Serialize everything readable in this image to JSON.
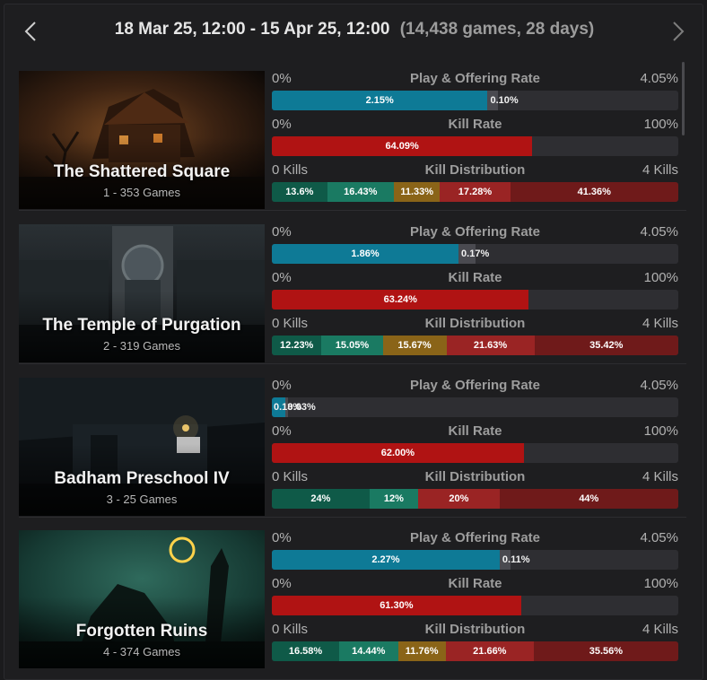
{
  "header": {
    "range": "18 Mar 25, 12:00 - 15 Apr 25, 12:00",
    "meta": "(14,438 games, 28 days)"
  },
  "colors": {
    "play": "#0e7a96",
    "offering": "#4a4a50",
    "kill": "#b01313",
    "k0": "#0f5a48",
    "k1": "#1a7a62",
    "k2": "#8a6418",
    "k3": "#9a2424",
    "k4": "#6f1a1a"
  },
  "labels": {
    "play_title": "Play & Offering Rate",
    "play_min": "0%",
    "play_max": "4.05%",
    "kill_title": "Kill Rate",
    "kill_min": "0%",
    "kill_max": "100%",
    "dist_title": "Kill Distribution",
    "dist_min": "0 Kills",
    "dist_max": "4 Kills"
  },
  "maps": [
    {
      "name": "The Shattered Square",
      "games": "1 - 353 Games",
      "play_rate": 2.15,
      "play_label": "2.15%",
      "offering_rate": 0.1,
      "offering_label": "0.10%",
      "kill_rate": 64.09,
      "kill_label": "64.09%",
      "distribution": [
        {
          "value": 13.6,
          "label": "13.6%"
        },
        {
          "value": 16.43,
          "label": "16.43%"
        },
        {
          "value": 11.33,
          "label": "11.33%"
        },
        {
          "value": 17.28,
          "label": "17.28%"
        },
        {
          "value": 41.36,
          "label": "41.36%"
        }
      ]
    },
    {
      "name": "The Temple of Purgation",
      "games": "2 - 319 Games",
      "play_rate": 1.86,
      "play_label": "1.86%",
      "offering_rate": 0.17,
      "offering_label": "0.17%",
      "kill_rate": 63.24,
      "kill_label": "63.24%",
      "distribution": [
        {
          "value": 12.23,
          "label": "12.23%"
        },
        {
          "value": 15.05,
          "label": "15.05%"
        },
        {
          "value": 15.67,
          "label": "15.67%"
        },
        {
          "value": 21.63,
          "label": "21.63%"
        },
        {
          "value": 35.42,
          "label": "35.42%"
        }
      ]
    },
    {
      "name": "Badham Preschool IV",
      "games": "3 - 25 Games",
      "play_rate": 0.13,
      "play_label": "0.13%",
      "offering_rate": 0.03,
      "offering_label": "0.03%",
      "kill_rate": 62.0,
      "kill_label": "62.00%",
      "distribution": [
        {
          "value": 24,
          "label": "24%"
        },
        {
          "value": 12,
          "label": "12%"
        },
        {
          "value": 0,
          "label": ""
        },
        {
          "value": 20,
          "label": "20%"
        },
        {
          "value": 44,
          "label": "44%"
        }
      ]
    },
    {
      "name": "Forgotten Ruins",
      "games": "4 - 374 Games",
      "play_rate": 2.27,
      "play_label": "2.27%",
      "offering_rate": 0.11,
      "offering_label": "0.11%",
      "kill_rate": 61.3,
      "kill_label": "61.30%",
      "distribution": [
        {
          "value": 16.58,
          "label": "16.58%"
        },
        {
          "value": 14.44,
          "label": "14.44%"
        },
        {
          "value": 11.76,
          "label": "11.76%"
        },
        {
          "value": 21.66,
          "label": "21.66%"
        },
        {
          "value": 35.56,
          "label": "35.56%"
        }
      ]
    }
  ]
}
